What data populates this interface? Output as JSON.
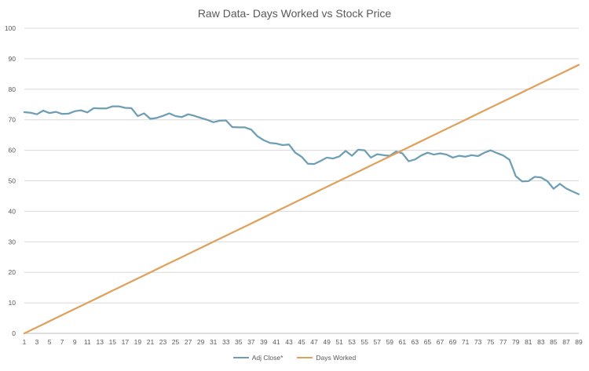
{
  "chart_data": {
    "type": "line",
    "title": "Raw Data- Days Worked vs Stock Price",
    "xlabel": "",
    "ylabel": "",
    "ylim": [
      0,
      100
    ],
    "yticks": [
      0,
      10,
      20,
      30,
      40,
      50,
      60,
      70,
      80,
      90,
      100
    ],
    "x": [
      1,
      2,
      3,
      4,
      5,
      6,
      7,
      8,
      9,
      10,
      11,
      12,
      13,
      14,
      15,
      16,
      17,
      18,
      19,
      20,
      21,
      22,
      23,
      24,
      25,
      26,
      27,
      28,
      29,
      30,
      31,
      32,
      33,
      34,
      35,
      36,
      37,
      38,
      39,
      40,
      41,
      42,
      43,
      44,
      45,
      46,
      47,
      48,
      49,
      50,
      51,
      52,
      53,
      54,
      55,
      56,
      57,
      58,
      59,
      60,
      61,
      62,
      63,
      64,
      65,
      66,
      67,
      68,
      69,
      70,
      71,
      72,
      73,
      74,
      75,
      76,
      77,
      78,
      79,
      80,
      81,
      82,
      83,
      84,
      85,
      86,
      87,
      88,
      89
    ],
    "xtick_labels": [
      "1",
      "3",
      "5",
      "7",
      "9",
      "11",
      "13",
      "15",
      "17",
      "19",
      "21",
      "23",
      "25",
      "27",
      "29",
      "31",
      "33",
      "35",
      "37",
      "39",
      "41",
      "43",
      "45",
      "47",
      "49",
      "51",
      "53",
      "55",
      "57",
      "59",
      "61",
      "63",
      "65",
      "67",
      "69",
      "71",
      "73",
      "75",
      "77",
      "79",
      "81",
      "83",
      "85",
      "87",
      "89"
    ],
    "grid": true,
    "legend_position": "bottom",
    "series": [
      {
        "name": "Adj Close*",
        "color": "#6d9eb5",
        "values": [
          72.5,
          72.3,
          71.8,
          73.0,
          72.2,
          72.6,
          71.9,
          72.0,
          72.8,
          73.1,
          72.4,
          73.8,
          73.7,
          73.7,
          74.4,
          74.4,
          73.9,
          73.8,
          71.2,
          72.1,
          70.3,
          70.6,
          71.3,
          72.1,
          71.2,
          70.9,
          71.8,
          71.3,
          70.6,
          70.0,
          69.2,
          69.7,
          69.8,
          67.6,
          67.5,
          67.5,
          66.8,
          64.6,
          63.3,
          62.4,
          62.2,
          61.7,
          61.9,
          59.2,
          57.9,
          55.6,
          55.5,
          56.5,
          57.6,
          57.3,
          58.0,
          59.8,
          58.2,
          60.2,
          60.0,
          57.6,
          58.7,
          58.4,
          58.2,
          59.6,
          59.0,
          56.4,
          57.0,
          58.3,
          59.2,
          58.6,
          59.0,
          58.6,
          57.6,
          58.2,
          57.9,
          58.4,
          58.1,
          59.2,
          60.0,
          59.1,
          58.3,
          56.9,
          51.5,
          49.8,
          49.9,
          51.3,
          51.1,
          49.9,
          47.4,
          49.0,
          47.5,
          46.5,
          45.6
        ]
      },
      {
        "name": "Days Worked",
        "color": "#e0a15c",
        "values": [
          0,
          1,
          2,
          3,
          4,
          5,
          6,
          7,
          8,
          9,
          10,
          11,
          12,
          13,
          14,
          15,
          16,
          17,
          18,
          19,
          20,
          21,
          22,
          23,
          24,
          25,
          26,
          27,
          28,
          29,
          30,
          31,
          32,
          33,
          34,
          35,
          36,
          37,
          38,
          39,
          40,
          41,
          42,
          43,
          44,
          45,
          46,
          47,
          48,
          49,
          50,
          51,
          52,
          53,
          54,
          55,
          56,
          57,
          58,
          59,
          60,
          61,
          62,
          63,
          64,
          65,
          66,
          67,
          68,
          69,
          70,
          71,
          72,
          73,
          74,
          75,
          76,
          77,
          78,
          79,
          80,
          81,
          82,
          83,
          84,
          85,
          86,
          87,
          88
        ]
      }
    ]
  }
}
